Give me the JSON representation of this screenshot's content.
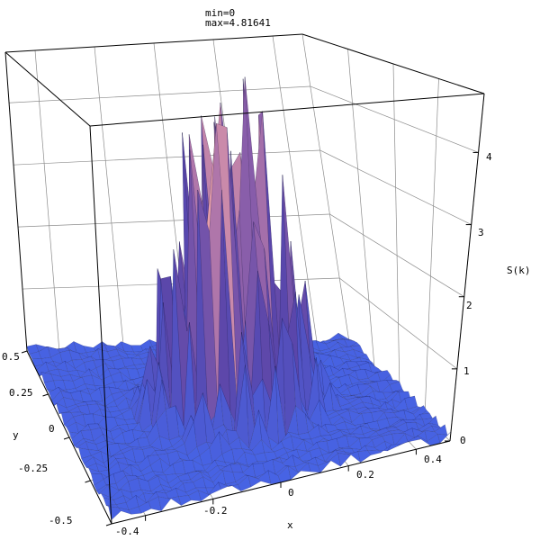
{
  "chart_data": {
    "type": "surface3d",
    "annotation": {
      "min_text": "min=0",
      "max_text": "max=4.81641"
    },
    "axes": {
      "x": {
        "label": "x",
        "range": [
          -0.5,
          0.5
        ],
        "ticks": [
          {
            "value": -0.4,
            "text": "-0.4"
          },
          {
            "value": -0.2,
            "text": "-0.2"
          },
          {
            "value": 0,
            "text": "0"
          },
          {
            "value": 0.2,
            "text": "0.2"
          },
          {
            "value": 0.4,
            "text": "0.4"
          }
        ]
      },
      "y": {
        "label": "y",
        "range": [
          -0.5,
          0.5
        ],
        "ticks": [
          {
            "value": -0.5,
            "text": "-0.5"
          },
          {
            "value": -0.25,
            "text": "-0.25"
          },
          {
            "value": 0,
            "text": "0"
          },
          {
            "value": 0.25,
            "text": "0.25"
          },
          {
            "value": 0.5,
            "text": "0.5"
          }
        ]
      },
      "z": {
        "label": "S(k)",
        "range": [
          0,
          4.81641
        ],
        "ticks": [
          {
            "value": 0,
            "text": "0"
          },
          {
            "value": 1,
            "text": "1"
          },
          {
            "value": 2,
            "text": "2"
          },
          {
            "value": 3,
            "text": "3"
          },
          {
            "value": 4,
            "text": "4"
          }
        ]
      }
    },
    "surface": {
      "z_min": 0,
      "z_max": 4.81641,
      "description_of_shape": "noisy spiky peaks concentrated in central region, near-zero flat noisy floor at edges"
    },
    "colors": {
      "low": "#4060e0",
      "mid": "#7a4a9a",
      "high": "#ffc8a0",
      "peak": "#f0b070"
    }
  }
}
